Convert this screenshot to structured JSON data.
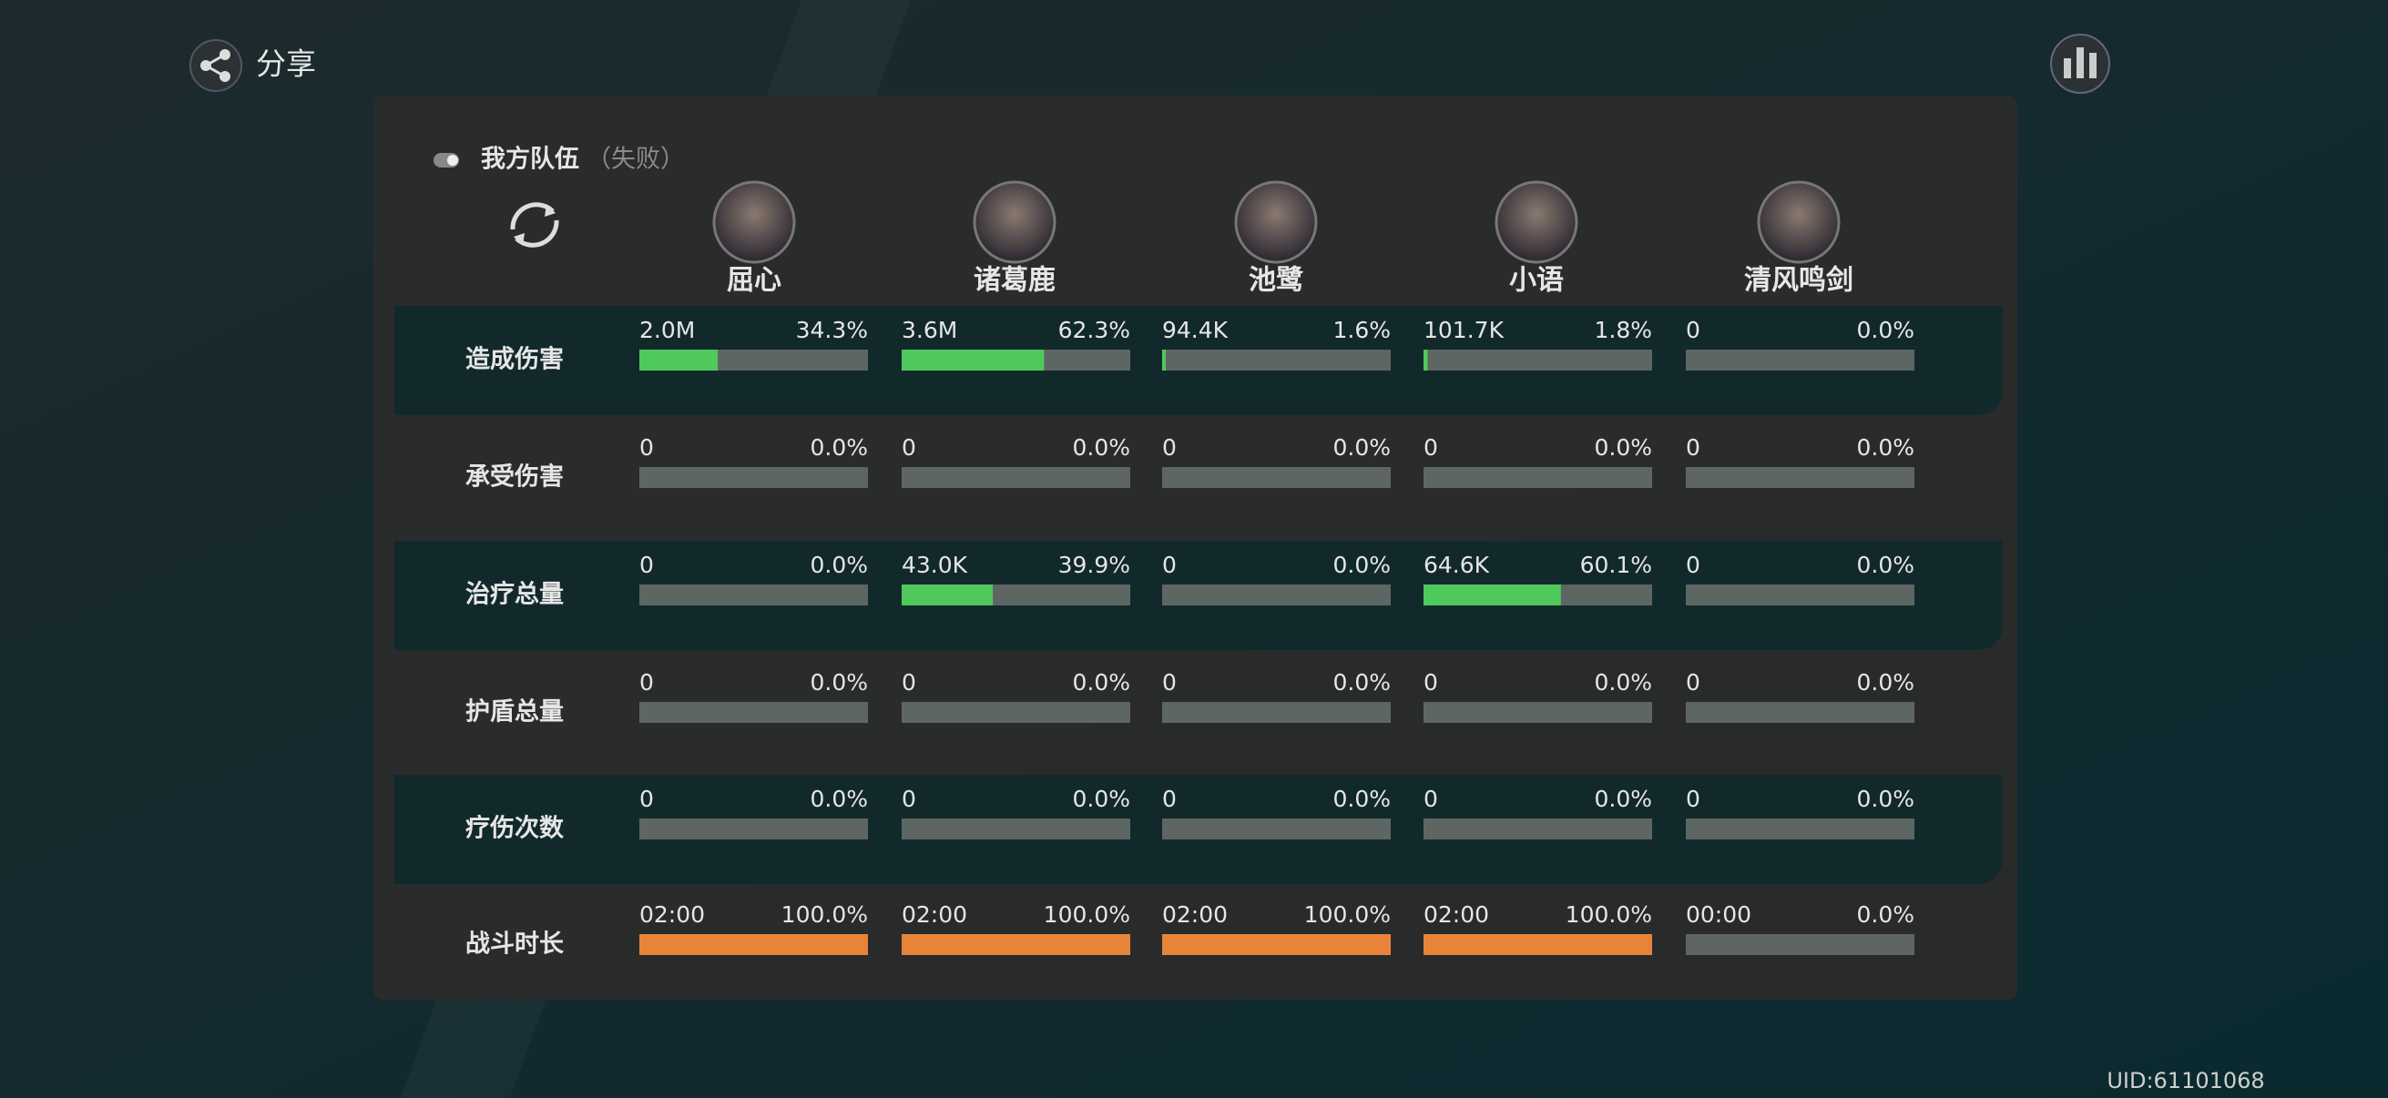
{
  "header": {
    "share": "分享"
  },
  "panel": {
    "title": "我方队伍",
    "status": "（失败）"
  },
  "players": [
    "屈心",
    "诸葛鹿",
    "池鹭",
    "小语",
    "清风鸣剑"
  ],
  "rows": [
    {
      "label": "造成伤害",
      "bar_color": "#4fc95c",
      "cells": [
        {
          "value": "2.0M",
          "share": 34.3,
          "share_label": "34.3%"
        },
        {
          "value": "3.6M",
          "share": 62.3,
          "share_label": "62.3%"
        },
        {
          "value": "94.4K",
          "share": 1.6,
          "share_label": "1.6%"
        },
        {
          "value": "101.7K",
          "share": 1.8,
          "share_label": "1.8%"
        },
        {
          "value": "0",
          "share": 0,
          "share_label": "0.0%"
        }
      ]
    },
    {
      "label": "承受伤害",
      "bar_color": "#4fc95c",
      "cells": [
        {
          "value": "0",
          "share": 0,
          "share_label": "0.0%"
        },
        {
          "value": "0",
          "share": 0,
          "share_label": "0.0%"
        },
        {
          "value": "0",
          "share": 0,
          "share_label": "0.0%"
        },
        {
          "value": "0",
          "share": 0,
          "share_label": "0.0%"
        },
        {
          "value": "0",
          "share": 0,
          "share_label": "0.0%"
        }
      ]
    },
    {
      "label": "治疗总量",
      "bar_color": "#4fc95c",
      "cells": [
        {
          "value": "0",
          "share": 0,
          "share_label": "0.0%"
        },
        {
          "value": "43.0K",
          "share": 39.9,
          "share_label": "39.9%"
        },
        {
          "value": "0",
          "share": 0,
          "share_label": "0.0%"
        },
        {
          "value": "64.6K",
          "share": 60.1,
          "share_label": "60.1%"
        },
        {
          "value": "0",
          "share": 0,
          "share_label": "0.0%"
        }
      ]
    },
    {
      "label": "护盾总量",
      "bar_color": "#4fc95c",
      "cells": [
        {
          "value": "0",
          "share": 0,
          "share_label": "0.0%"
        },
        {
          "value": "0",
          "share": 0,
          "share_label": "0.0%"
        },
        {
          "value": "0",
          "share": 0,
          "share_label": "0.0%"
        },
        {
          "value": "0",
          "share": 0,
          "share_label": "0.0%"
        },
        {
          "value": "0",
          "share": 0,
          "share_label": "0.0%"
        }
      ]
    },
    {
      "label": "疗伤次数",
      "bar_color": "#4fc95c",
      "cells": [
        {
          "value": "0",
          "share": 0,
          "share_label": "0.0%"
        },
        {
          "value": "0",
          "share": 0,
          "share_label": "0.0%"
        },
        {
          "value": "0",
          "share": 0,
          "share_label": "0.0%"
        },
        {
          "value": "0",
          "share": 0,
          "share_label": "0.0%"
        },
        {
          "value": "0",
          "share": 0,
          "share_label": "0.0%"
        }
      ]
    },
    {
      "label": "战斗时长",
      "bar_color": "#e8843a",
      "cells": [
        {
          "value": "02:00",
          "share": 100,
          "share_label": "100.0%"
        },
        {
          "value": "02:00",
          "share": 100,
          "share_label": "100.0%"
        },
        {
          "value": "02:00",
          "share": 100,
          "share_label": "100.0%"
        },
        {
          "value": "02:00",
          "share": 100,
          "share_label": "100.0%"
        },
        {
          "value": "00:00",
          "share": 0,
          "share_label": "0.0%"
        }
      ]
    }
  ],
  "uid": "UID:61101068"
}
